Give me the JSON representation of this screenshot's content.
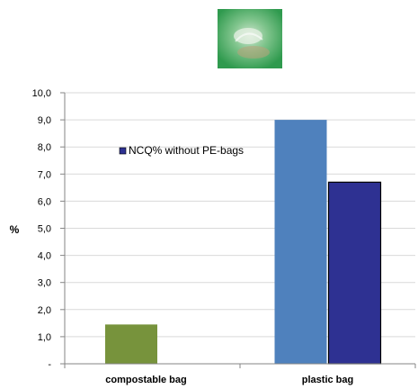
{
  "chart_data": {
    "type": "bar",
    "categories": [
      "compostable bag",
      "plastic bag"
    ],
    "series": [
      {
        "values": [
          1.45,
          9.0
        ],
        "color": "#77933c"
      },
      {
        "name": "NCQ% without PE-bags",
        "values": [
          null,
          6.7
        ],
        "color": "#2e3192"
      }
    ],
    "bar_colors_by_category": [
      [
        "#77933c",
        null
      ],
      [
        "#4f81bd",
        "#2e3192"
      ]
    ],
    "ylabel": "%",
    "xlabel": "",
    "ylim": [
      0,
      10
    ],
    "y_ticks": [
      "-",
      "1,0",
      "2,0",
      "3,0",
      "4,0",
      "5,0",
      "6,0",
      "7,0",
      "8,0",
      "9,0",
      "10,0"
    ],
    "grid": true,
    "legend": {
      "position": "top-left inside plot",
      "entries": [
        "NCQ% without PE-bags"
      ]
    },
    "decorative_image": "green-compostable-bag-photo"
  },
  "colors": {
    "grid": "#d9d9d9",
    "axis": "#868686",
    "bar_outline": "#000000",
    "legend_marker": "#2e3192"
  }
}
